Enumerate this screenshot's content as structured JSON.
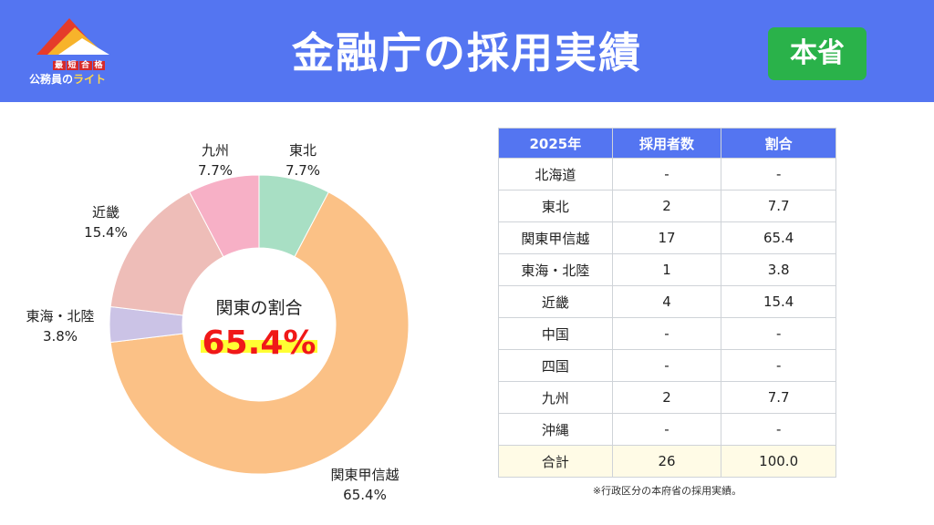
{
  "header": {
    "title": "金融庁の採用実績",
    "badge": "本省",
    "logo": {
      "tag": [
        "最",
        "短",
        "合",
        "格"
      ],
      "text_prefix": "公務員の",
      "text_brand": "ライト"
    }
  },
  "chart_data": {
    "type": "pie",
    "donut": true,
    "center_title": "関東の割合",
    "center_value": "65.4%",
    "slices": [
      {
        "label": "東北",
        "value": 7.7,
        "display": "7.7%",
        "color": "#a8dfc4"
      },
      {
        "label": "関東甲信越",
        "value": 65.4,
        "display": "65.4%",
        "color": "#fbc186"
      },
      {
        "label": "東海・北陸",
        "value": 3.8,
        "display": "3.8%",
        "color": "#cbc3e6"
      },
      {
        "label": "近畿",
        "value": 15.4,
        "display": "15.4%",
        "color": "#eebdb8"
      },
      {
        "label": "九州",
        "value": 7.7,
        "display": "7.7%",
        "color": "#f7b0c6"
      }
    ]
  },
  "table": {
    "headers": [
      "2025年",
      "採用者数",
      "割合"
    ],
    "rows": [
      [
        "北海道",
        "-",
        "-"
      ],
      [
        "東北",
        "2",
        "7.7"
      ],
      [
        "関東甲信越",
        "17",
        "65.4"
      ],
      [
        "東海・北陸",
        "1",
        "3.8"
      ],
      [
        "近畿",
        "4",
        "15.4"
      ],
      [
        "中国",
        "-",
        "-"
      ],
      [
        "四国",
        "-",
        "-"
      ],
      [
        "九州",
        "2",
        "7.7"
      ],
      [
        "沖縄",
        "-",
        "-"
      ]
    ],
    "total": [
      "合計",
      "26",
      "100.0"
    ]
  },
  "note": "※行政区分の本府省の採用実績。"
}
